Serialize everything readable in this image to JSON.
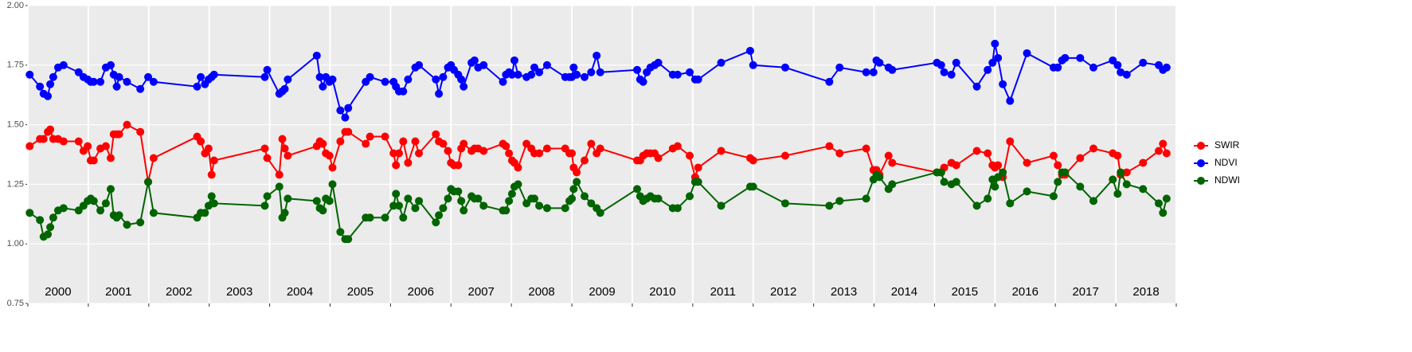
{
  "chart_data": {
    "type": "line",
    "x": [
      2000.03,
      2000.2,
      2000.26,
      2000.33,
      2000.37,
      2000.42,
      2000.5,
      2000.59,
      2000.84,
      2000.92,
      2000.99,
      2001.04,
      2001.09,
      2001.2,
      2001.29,
      2001.37,
      2001.42,
      2001.47,
      2001.51,
      2001.64,
      2001.86,
      2001.99,
      2002.08,
      2002.8,
      2002.86,
      2002.93,
      2002.99,
      2003.04,
      2003.08,
      2003.92,
      2003.96,
      2004.16,
      2004.21,
      2004.25,
      2004.3,
      2004.78,
      2004.83,
      2004.88,
      2004.93,
      2004.99,
      2005.04,
      2005.17,
      2005.25,
      2005.3,
      2005.59,
      2005.66,
      2005.91,
      2006.05,
      2006.09,
      2006.14,
      2006.21,
      2006.29,
      2006.41,
      2006.47,
      2006.75,
      2006.8,
      2006.87,
      2006.95,
      2007.0,
      2007.05,
      2007.12,
      2007.17,
      2007.21,
      2007.34,
      2007.39,
      2007.45,
      2007.54,
      2007.86,
      2007.91,
      2007.96,
      2008.01,
      2008.05,
      2008.11,
      2008.25,
      2008.33,
      2008.38,
      2008.46,
      2008.59,
      2008.89,
      2008.96,
      2009.0,
      2009.03,
      2009.08,
      2009.21,
      2009.32,
      2009.41,
      2009.47,
      2010.08,
      2010.13,
      2010.18,
      2010.24,
      2010.3,
      2010.37,
      2010.43,
      2010.67,
      2010.75,
      2010.95,
      2011.04,
      2011.09,
      2011.47,
      2011.95,
      2012.0,
      2012.53,
      2013.26,
      2013.43,
      2013.87,
      2013.99,
      2014.04,
      2014.09,
      2014.24,
      2014.3,
      2015.04,
      2015.11,
      2015.16,
      2015.28,
      2015.36,
      2015.7,
      2015.88,
      2015.96,
      2016.0,
      2016.05,
      2016.13,
      2016.25,
      2016.53,
      2016.97,
      2017.04,
      2017.11,
      2017.16,
      2017.41,
      2017.63,
      2017.95,
      2018.03,
      2018.08,
      2018.18,
      2018.45,
      2018.71,
      2018.78,
      2018.84
    ],
    "series": [
      {
        "name": "SWIR",
        "color": "#ff0000",
        "values": [
          1.41,
          1.44,
          1.44,
          1.47,
          1.48,
          1.44,
          1.44,
          1.43,
          1.43,
          1.39,
          1.41,
          1.35,
          1.35,
          1.4,
          1.41,
          1.36,
          1.46,
          1.46,
          1.46,
          1.5,
          1.47,
          1.26,
          1.36,
          1.45,
          1.43,
          1.38,
          1.4,
          1.29,
          1.35,
          1.4,
          1.36,
          1.29,
          1.44,
          1.4,
          1.37,
          1.41,
          1.43,
          1.42,
          1.38,
          1.37,
          1.32,
          1.43,
          1.47,
          1.47,
          1.42,
          1.45,
          1.45,
          1.38,
          1.33,
          1.38,
          1.43,
          1.34,
          1.43,
          1.38,
          1.46,
          1.43,
          1.42,
          1.39,
          1.34,
          1.33,
          1.33,
          1.4,
          1.42,
          1.39,
          1.4,
          1.4,
          1.39,
          1.42,
          1.41,
          1.38,
          1.35,
          1.34,
          1.32,
          1.42,
          1.4,
          1.38,
          1.38,
          1.4,
          1.4,
          1.38,
          1.38,
          1.32,
          1.3,
          1.35,
          1.42,
          1.38,
          1.4,
          1.35,
          1.35,
          1.37,
          1.38,
          1.38,
          1.38,
          1.36,
          1.4,
          1.41,
          1.37,
          1.28,
          1.32,
          1.39,
          1.36,
          1.35,
          1.37,
          1.41,
          1.38,
          1.4,
          1.31,
          1.31,
          1.29,
          1.37,
          1.34,
          1.3,
          1.3,
          1.32,
          1.34,
          1.33,
          1.39,
          1.38,
          1.33,
          1.32,
          1.33,
          1.28,
          1.43,
          1.34,
          1.37,
          1.33,
          1.29,
          1.29,
          1.36,
          1.4,
          1.38,
          1.37,
          1.29,
          1.3,
          1.34,
          1.39,
          1.42,
          1.38
        ]
      },
      {
        "name": "NDVI",
        "color": "#0000ff",
        "values": [
          1.71,
          1.66,
          1.63,
          1.62,
          1.67,
          1.7,
          1.74,
          1.75,
          1.72,
          1.7,
          1.69,
          1.68,
          1.68,
          1.68,
          1.74,
          1.75,
          1.71,
          1.66,
          1.7,
          1.68,
          1.65,
          1.7,
          1.68,
          1.66,
          1.7,
          1.67,
          1.69,
          1.7,
          1.71,
          1.7,
          1.73,
          1.63,
          1.64,
          1.65,
          1.69,
          1.79,
          1.7,
          1.66,
          1.7,
          1.68,
          1.69,
          1.56,
          1.53,
          1.57,
          1.68,
          1.7,
          1.68,
          1.68,
          1.66,
          1.64,
          1.64,
          1.69,
          1.74,
          1.75,
          1.69,
          1.63,
          1.7,
          1.74,
          1.75,
          1.73,
          1.71,
          1.69,
          1.66,
          1.76,
          1.77,
          1.74,
          1.75,
          1.68,
          1.71,
          1.72,
          1.71,
          1.77,
          1.71,
          1.7,
          1.71,
          1.74,
          1.72,
          1.75,
          1.7,
          1.7,
          1.7,
          1.74,
          1.71,
          1.7,
          1.72,
          1.79,
          1.72,
          1.73,
          1.69,
          1.68,
          1.72,
          1.74,
          1.75,
          1.76,
          1.71,
          1.71,
          1.72,
          1.69,
          1.69,
          1.76,
          1.81,
          1.75,
          1.74,
          1.68,
          1.74,
          1.72,
          1.72,
          1.77,
          1.76,
          1.74,
          1.73,
          1.76,
          1.75,
          1.72,
          1.71,
          1.76,
          1.66,
          1.73,
          1.76,
          1.84,
          1.78,
          1.67,
          1.6,
          1.8,
          1.74,
          1.74,
          1.77,
          1.78,
          1.78,
          1.74,
          1.77,
          1.75,
          1.72,
          1.71,
          1.76,
          1.75,
          1.73,
          1.74
        ]
      },
      {
        "name": "NDWI",
        "color": "#006400",
        "values": [
          1.13,
          1.1,
          1.03,
          1.04,
          1.07,
          1.11,
          1.14,
          1.15,
          1.14,
          1.16,
          1.18,
          1.19,
          1.18,
          1.14,
          1.17,
          1.23,
          1.12,
          1.11,
          1.12,
          1.08,
          1.09,
          1.26,
          1.13,
          1.11,
          1.13,
          1.13,
          1.16,
          1.2,
          1.17,
          1.16,
          1.2,
          1.24,
          1.11,
          1.13,
          1.19,
          1.18,
          1.15,
          1.14,
          1.19,
          1.18,
          1.25,
          1.05,
          1.02,
          1.02,
          1.11,
          1.11,
          1.11,
          1.16,
          1.21,
          1.16,
          1.11,
          1.19,
          1.15,
          1.18,
          1.09,
          1.12,
          1.15,
          1.19,
          1.23,
          1.22,
          1.22,
          1.18,
          1.14,
          1.2,
          1.19,
          1.19,
          1.16,
          1.14,
          1.14,
          1.18,
          1.21,
          1.24,
          1.25,
          1.17,
          1.19,
          1.19,
          1.16,
          1.15,
          1.15,
          1.18,
          1.19,
          1.23,
          1.26,
          1.2,
          1.17,
          1.15,
          1.13,
          1.23,
          1.2,
          1.18,
          1.19,
          1.2,
          1.19,
          1.19,
          1.15,
          1.15,
          1.2,
          1.26,
          1.26,
          1.16,
          1.24,
          1.24,
          1.17,
          1.16,
          1.18,
          1.19,
          1.27,
          1.29,
          1.28,
          1.23,
          1.25,
          1.3,
          1.3,
          1.26,
          1.25,
          1.26,
          1.16,
          1.19,
          1.27,
          1.24,
          1.28,
          1.3,
          1.17,
          1.22,
          1.2,
          1.26,
          1.3,
          1.3,
          1.24,
          1.18,
          1.27,
          1.21,
          1.3,
          1.25,
          1.23,
          1.17,
          1.13,
          1.19
        ]
      }
    ],
    "xlim": [
      2000,
      2019
    ],
    "xticks": [
      2000,
      2001,
      2002,
      2003,
      2004,
      2005,
      2006,
      2007,
      2008,
      2009,
      2010,
      2011,
      2012,
      2013,
      2014,
      2015,
      2016,
      2017,
      2018,
      2019
    ],
    "year_labels": [
      "2000",
      "2001",
      "2002",
      "2003",
      "2004",
      "2005",
      "2006",
      "2007",
      "2008",
      "2009",
      "2010",
      "2011",
      "2012",
      "2013",
      "2014",
      "2015",
      "2016",
      "2017",
      "2018"
    ],
    "ylim": [
      0.75,
      2.0
    ],
    "yticks": [
      {
        "value": 0.75,
        "label": "0.75"
      },
      {
        "value": 1.0,
        "label": "1.00"
      },
      {
        "value": 1.25,
        "label": "1.25"
      },
      {
        "value": 1.5,
        "label": "1.50"
      },
      {
        "value": 1.75,
        "label": "1.75"
      },
      {
        "value": 2.0,
        "label": "2.00"
      }
    ],
    "grid": true,
    "legend": "right"
  }
}
